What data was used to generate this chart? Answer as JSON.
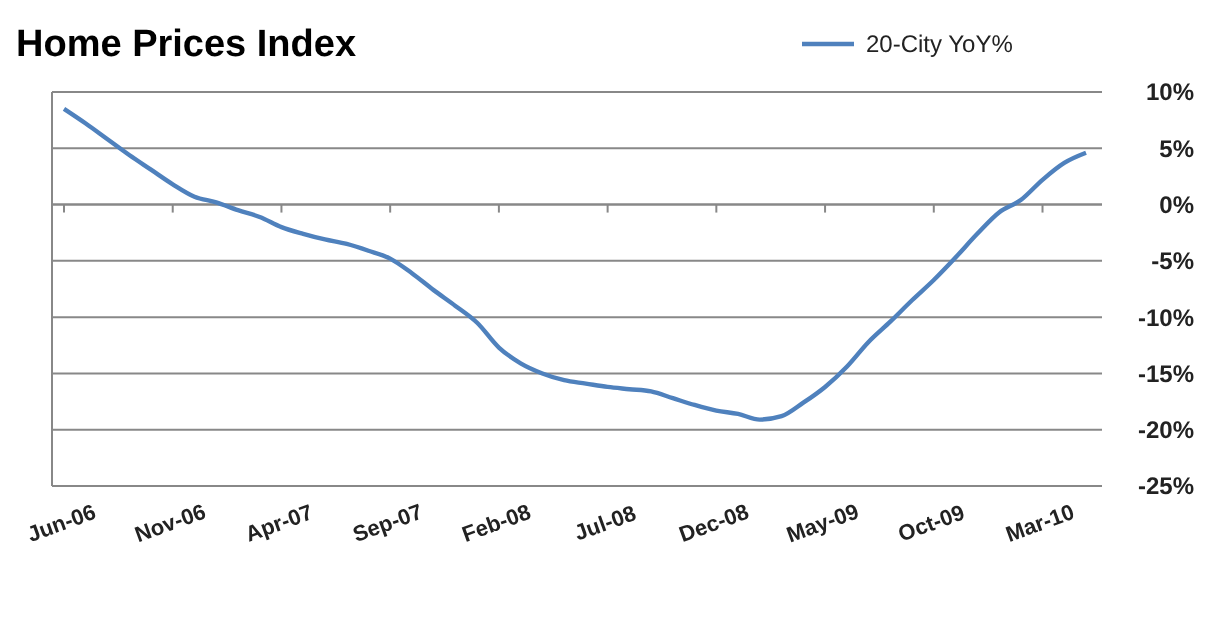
{
  "chart_data": {
    "type": "line",
    "title": "Home Prices Index",
    "categories": [
      "Jun-06",
      null,
      null,
      null,
      null,
      "Nov-06",
      null,
      null,
      null,
      null,
      "Apr-07",
      null,
      null,
      null,
      null,
      "Sep-07",
      null,
      null,
      null,
      null,
      "Feb-08",
      null,
      null,
      null,
      null,
      "Jul-08",
      null,
      null,
      null,
      null,
      "Dec-08",
      null,
      null,
      null,
      null,
      "May-09",
      null,
      null,
      null,
      null,
      "Oct-09",
      null,
      null,
      null,
      null,
      "Mar-10",
      null,
      null
    ],
    "series": [
      {
        "name": "20-City YoY%",
        "color": "#4f81bd",
        "values": [
          8.5,
          7.2,
          5.8,
          4.4,
          3.1,
          1.8,
          0.7,
          0.2,
          -0.5,
          -1.1,
          -2.0,
          -2.6,
          -3.1,
          -3.5,
          -4.1,
          -4.8,
          -6.1,
          -7.6,
          -9.0,
          -10.5,
          -12.7,
          -14.1,
          -15.0,
          -15.6,
          -15.9,
          -16.2,
          -16.4,
          -16.6,
          -17.2,
          -17.8,
          -18.3,
          -18.6,
          -19.1,
          -18.8,
          -17.6,
          -16.2,
          -14.4,
          -12.2,
          -10.4,
          -8.5,
          -6.7,
          -4.7,
          -2.6,
          -0.7,
          0.4,
          2.2,
          3.7,
          4.6
        ]
      }
    ],
    "ylim": [
      -25,
      10
    ],
    "yticks": [
      {
        "value": -25,
        "label": "-25%"
      },
      {
        "value": -20,
        "label": "-20%"
      },
      {
        "value": -15,
        "label": "-15%"
      },
      {
        "value": -10,
        "label": "-10%"
      },
      {
        "value": -5,
        "label": "-5%"
      },
      {
        "value": 0,
        "label": "0%"
      },
      {
        "value": 5,
        "label": "5%"
      },
      {
        "value": 10,
        "label": "10%"
      }
    ],
    "grid": "y",
    "legend": "top right",
    "marker": "none",
    "line_style": "solid"
  }
}
